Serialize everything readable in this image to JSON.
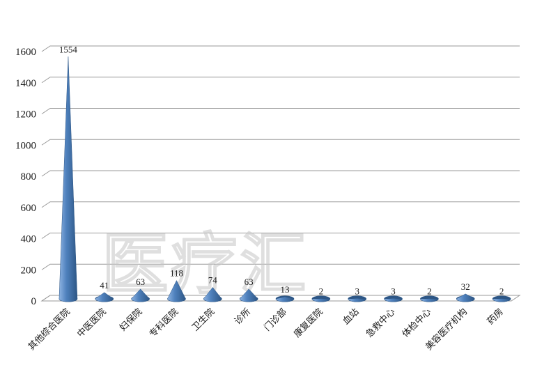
{
  "chart_data": {
    "type": "bar",
    "variant": "cone-3d",
    "title": "",
    "xlabel": "",
    "ylabel": "",
    "categories": [
      "其他综合医院",
      "中医医院",
      "妇保院",
      "专科医院",
      "卫生院",
      "诊所",
      "门诊部",
      "康复医院",
      "血站",
      "急救中心",
      "体检中心",
      "美容医疗机构",
      "药房"
    ],
    "values": [
      1554,
      41,
      63,
      118,
      74,
      63,
      13,
      2,
      3,
      3,
      2,
      32,
      2
    ],
    "ylim": [
      0,
      1600
    ],
    "ytick_step": 200,
    "yticks": [
      0,
      200,
      400,
      600,
      800,
      1000,
      1200,
      1400,
      1600
    ],
    "grid": true,
    "legend": "none",
    "value_labels_shown": true,
    "category_label_rotation_deg": -45,
    "colors": {
      "cone_light": "#8db3e2",
      "cone_mid": "#4f81bd",
      "cone_dark": "#2d5685",
      "gridline": "#9a9a9a",
      "axis_text": "#1a1a1a",
      "background": "#ffffff",
      "watermark": "#c6c6c6"
    }
  },
  "watermark": {
    "text": "医疗汇"
  }
}
